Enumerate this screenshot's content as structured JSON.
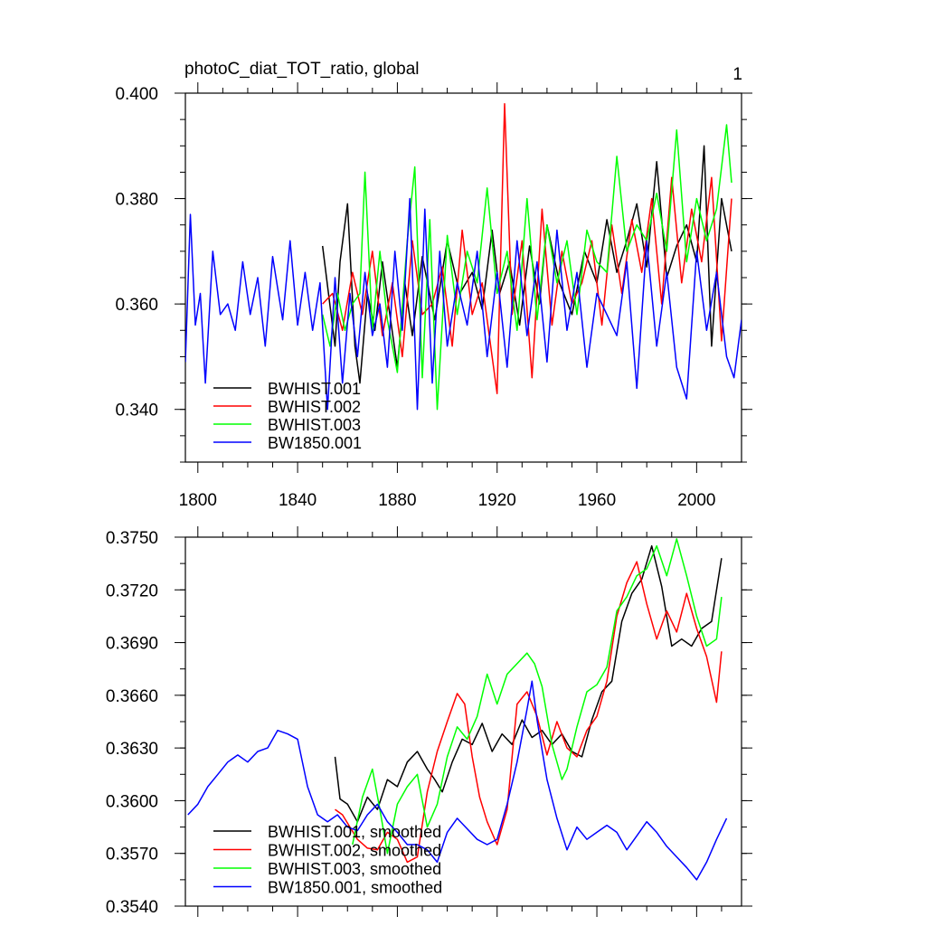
{
  "page": {
    "title": "photoC_diat_TOT_ratio, global",
    "panel_number": "1"
  },
  "chart_data": [
    {
      "type": "line",
      "title": "photoC_diat_TOT_ratio, global",
      "xlabel": "",
      "ylabel": "",
      "xlim": [
        1795,
        2018
      ],
      "ylim": [
        0.33,
        0.4
      ],
      "xticks": [
        {
          "v": 1800,
          "label": "1800"
        },
        {
          "v": 1840,
          "label": "1840"
        },
        {
          "v": 1880,
          "label": "1880"
        },
        {
          "v": 1920,
          "label": "1920"
        },
        {
          "v": 1960,
          "label": "1960"
        },
        {
          "v": 2000,
          "label": "2000"
        }
      ],
      "yticks": [
        {
          "v": 0.4,
          "label": "0.400"
        },
        {
          "v": 0.38,
          "label": "0.380"
        },
        {
          "v": 0.36,
          "label": "0.360"
        },
        {
          "v": 0.34,
          "label": "0.340"
        }
      ],
      "grid": false,
      "legend_position": "bottom-left",
      "series": [
        {
          "name": "BWHIST.001",
          "color": "#000000",
          "x": [
            1850,
            1855,
            1857,
            1860,
            1863,
            1865,
            1868,
            1871,
            1874,
            1877,
            1880,
            1883,
            1886,
            1890,
            1895,
            1900,
            1905,
            1910,
            1914,
            1918,
            1921,
            1925,
            1929,
            1933,
            1937,
            1940,
            1945,
            1950,
            1955,
            1960,
            1964,
            1968,
            1972,
            1976,
            1980,
            1984,
            1988,
            1992,
            1996,
            2000,
            2003,
            2006,
            2010,
            2014
          ],
          "y": [
            0.371,
            0.352,
            0.368,
            0.379,
            0.352,
            0.345,
            0.362,
            0.355,
            0.368,
            0.358,
            0.348,
            0.364,
            0.354,
            0.369,
            0.357,
            0.372,
            0.362,
            0.366,
            0.359,
            0.374,
            0.362,
            0.368,
            0.356,
            0.371,
            0.36,
            0.375,
            0.364,
            0.358,
            0.37,
            0.364,
            0.376,
            0.366,
            0.372,
            0.379,
            0.367,
            0.387,
            0.365,
            0.371,
            0.375,
            0.368,
            0.39,
            0.352,
            0.38,
            0.37
          ]
        },
        {
          "name": "BWHIST.002",
          "color": "#ff0000",
          "x": [
            1850,
            1854,
            1858,
            1862,
            1866,
            1870,
            1874,
            1878,
            1882,
            1886,
            1890,
            1894,
            1898,
            1902,
            1906,
            1910,
            1914,
            1918,
            1920,
            1923,
            1926,
            1930,
            1934,
            1938,
            1942,
            1946,
            1950,
            1954,
            1958,
            1962,
            1966,
            1970,
            1974,
            1978,
            1982,
            1986,
            1990,
            1994,
            1998,
            2002,
            2006,
            2010,
            2014
          ],
          "y": [
            0.36,
            0.362,
            0.355,
            0.366,
            0.358,
            0.37,
            0.354,
            0.364,
            0.35,
            0.372,
            0.358,
            0.36,
            0.367,
            0.352,
            0.374,
            0.358,
            0.364,
            0.35,
            0.343,
            0.398,
            0.358,
            0.372,
            0.346,
            0.378,
            0.356,
            0.37,
            0.36,
            0.364,
            0.372,
            0.356,
            0.375,
            0.362,
            0.376,
            0.366,
            0.38,
            0.36,
            0.384,
            0.364,
            0.378,
            0.368,
            0.384,
            0.353,
            0.38
          ]
        },
        {
          "name": "BWHIST.003",
          "color": "#00ff00",
          "x": [
            1850,
            1853,
            1856,
            1859,
            1862,
            1865,
            1867,
            1870,
            1873,
            1876,
            1880,
            1884,
            1887,
            1890,
            1893,
            1896,
            1900,
            1904,
            1908,
            1912,
            1916,
            1920,
            1924,
            1928,
            1932,
            1936,
            1940,
            1944,
            1948,
            1952,
            1956,
            1960,
            1964,
            1968,
            1972,
            1976,
            1980,
            1984,
            1988,
            1992,
            1996,
            2000,
            2004,
            2008,
            2012,
            2014
          ],
          "y": [
            0.358,
            0.352,
            0.362,
            0.355,
            0.36,
            0.362,
            0.385,
            0.355,
            0.37,
            0.357,
            0.347,
            0.372,
            0.386,
            0.346,
            0.376,
            0.34,
            0.373,
            0.358,
            0.37,
            0.364,
            0.382,
            0.362,
            0.37,
            0.355,
            0.38,
            0.357,
            0.375,
            0.364,
            0.372,
            0.358,
            0.374,
            0.368,
            0.366,
            0.388,
            0.37,
            0.375,
            0.372,
            0.381,
            0.37,
            0.393,
            0.368,
            0.38,
            0.372,
            0.378,
            0.394,
            0.383
          ]
        },
        {
          "name": "BW1850.001",
          "color": "#0000ff",
          "x": [
            1795,
            1797,
            1799,
            1801,
            1803,
            1806,
            1809,
            1812,
            1815,
            1818,
            1821,
            1824,
            1827,
            1830,
            1834,
            1837,
            1840,
            1843,
            1846,
            1849,
            1852,
            1855,
            1858,
            1861,
            1864,
            1867,
            1870,
            1873,
            1876,
            1879,
            1882,
            1885,
            1888,
            1891,
            1894,
            1897,
            1900,
            1904,
            1908,
            1912,
            1916,
            1920,
            1924,
            1928,
            1932,
            1936,
            1940,
            1944,
            1948,
            1952,
            1956,
            1960,
            1964,
            1968,
            1972,
            1976,
            1980,
            1984,
            1988,
            1992,
            1996,
            2000,
            2004,
            2008,
            2012,
            2015,
            2018
          ],
          "y": [
            0.349,
            0.377,
            0.356,
            0.362,
            0.345,
            0.37,
            0.358,
            0.36,
            0.355,
            0.368,
            0.358,
            0.365,
            0.352,
            0.369,
            0.357,
            0.372,
            0.356,
            0.366,
            0.355,
            0.364,
            0.34,
            0.365,
            0.345,
            0.362,
            0.35,
            0.366,
            0.354,
            0.36,
            0.348,
            0.37,
            0.355,
            0.38,
            0.34,
            0.378,
            0.345,
            0.37,
            0.352,
            0.364,
            0.356,
            0.37,
            0.35,
            0.366,
            0.348,
            0.372,
            0.354,
            0.368,
            0.349,
            0.374,
            0.355,
            0.366,
            0.348,
            0.362,
            0.358,
            0.354,
            0.368,
            0.344,
            0.372,
            0.352,
            0.366,
            0.348,
            0.342,
            0.37,
            0.355,
            0.366,
            0.35,
            0.346,
            0.357
          ]
        }
      ]
    },
    {
      "type": "line",
      "title": "",
      "xlabel": "",
      "ylabel": "",
      "xlim": [
        1795,
        2018
      ],
      "ylim": [
        0.354,
        0.375
      ],
      "xticks": [
        {
          "v": 1800,
          "label": ""
        },
        {
          "v": 1840,
          "label": ""
        },
        {
          "v": 1880,
          "label": ""
        },
        {
          "v": 1920,
          "label": ""
        },
        {
          "v": 1960,
          "label": ""
        },
        {
          "v": 2000,
          "label": ""
        }
      ],
      "yticks": [
        {
          "v": 0.375,
          "label": "0.3750"
        },
        {
          "v": 0.372,
          "label": "0.3720"
        },
        {
          "v": 0.369,
          "label": "0.3690"
        },
        {
          "v": 0.366,
          "label": "0.3660"
        },
        {
          "v": 0.363,
          "label": "0.3630"
        },
        {
          "v": 0.36,
          "label": "0.3600"
        },
        {
          "v": 0.357,
          "label": "0.3570"
        },
        {
          "v": 0.354,
          "label": "0.3540"
        }
      ],
      "grid": false,
      "legend_position": "bottom-left",
      "series": [
        {
          "name": "BWHIST.001, smoothed",
          "color": "#000000",
          "x": [
            1855,
            1857,
            1860,
            1864,
            1868,
            1872,
            1876,
            1880,
            1884,
            1888,
            1892,
            1895,
            1898,
            1902,
            1906,
            1910,
            1914,
            1918,
            1922,
            1926,
            1930,
            1934,
            1938,
            1942,
            1946,
            1950,
            1954,
            1958,
            1962,
            1966,
            1970,
            1974,
            1978,
            1982,
            1986,
            1990,
            1994,
            1998,
            2002,
            2006,
            2010
          ],
          "y": [
            0.3625,
            0.3601,
            0.3598,
            0.3588,
            0.3602,
            0.3595,
            0.3612,
            0.3608,
            0.3622,
            0.3628,
            0.3618,
            0.3612,
            0.3605,
            0.3622,
            0.3635,
            0.3632,
            0.3644,
            0.3628,
            0.3638,
            0.3632,
            0.3646,
            0.3636,
            0.364,
            0.3632,
            0.3638,
            0.3628,
            0.3625,
            0.3646,
            0.3662,
            0.3668,
            0.3702,
            0.3718,
            0.3726,
            0.3745,
            0.3722,
            0.3688,
            0.3692,
            0.3688,
            0.3698,
            0.3702,
            0.3738
          ]
        },
        {
          "name": "BWHIST.002, smoothed",
          "color": "#ff0000",
          "x": [
            1855,
            1858,
            1861,
            1864,
            1868,
            1872,
            1876,
            1880,
            1884,
            1888,
            1892,
            1896,
            1900,
            1904,
            1907,
            1910,
            1913,
            1916,
            1920,
            1924,
            1928,
            1932,
            1936,
            1940,
            1944,
            1948,
            1952,
            1956,
            1960,
            1964,
            1968,
            1972,
            1976,
            1980,
            1984,
            1988,
            1992,
            1996,
            2000,
            2004,
            2008,
            2010
          ],
          "y": [
            0.3595,
            0.3592,
            0.3585,
            0.3578,
            0.3573,
            0.3572,
            0.3582,
            0.3578,
            0.3565,
            0.3568,
            0.3605,
            0.3628,
            0.3645,
            0.3661,
            0.3655,
            0.3625,
            0.3602,
            0.3588,
            0.3575,
            0.3595,
            0.3655,
            0.3662,
            0.3648,
            0.3626,
            0.3645,
            0.363,
            0.3625,
            0.364,
            0.3648,
            0.3668,
            0.3705,
            0.3724,
            0.3736,
            0.3712,
            0.3692,
            0.3708,
            0.3696,
            0.3718,
            0.3698,
            0.3682,
            0.3656,
            0.3685
          ]
        },
        {
          "name": "BWHIST.003, smoothed",
          "color": "#00ff00",
          "x": [
            1862,
            1866,
            1870,
            1873,
            1876,
            1880,
            1884,
            1888,
            1892,
            1896,
            1900,
            1904,
            1908,
            1912,
            1916,
            1920,
            1924,
            1928,
            1932,
            1935,
            1938,
            1942,
            1946,
            1948,
            1952,
            1956,
            1960,
            1964,
            1968,
            1972,
            1976,
            1980,
            1984,
            1988,
            1992,
            1996,
            2000,
            2004,
            2008,
            2010
          ],
          "y": [
            0.3575,
            0.3602,
            0.3618,
            0.3595,
            0.357,
            0.3598,
            0.3608,
            0.3615,
            0.3585,
            0.3598,
            0.3625,
            0.3642,
            0.3635,
            0.3648,
            0.3672,
            0.3655,
            0.3672,
            0.3678,
            0.3684,
            0.3678,
            0.3665,
            0.3632,
            0.3612,
            0.3618,
            0.3642,
            0.3662,
            0.3666,
            0.3676,
            0.3708,
            0.3716,
            0.3728,
            0.3732,
            0.3745,
            0.3728,
            0.3749,
            0.3728,
            0.3705,
            0.3688,
            0.3692,
            0.3716
          ]
        },
        {
          "name": "BW1850.001, smoothed",
          "color": "#0000ff",
          "x": [
            1796,
            1800,
            1804,
            1808,
            1812,
            1816,
            1820,
            1824,
            1828,
            1832,
            1836,
            1840,
            1844,
            1848,
            1852,
            1856,
            1860,
            1864,
            1868,
            1872,
            1876,
            1880,
            1884,
            1888,
            1892,
            1896,
            1900,
            1904,
            1908,
            1912,
            1916,
            1920,
            1924,
            1928,
            1932,
            1934,
            1936,
            1940,
            1944,
            1948,
            1952,
            1956,
            1960,
            1964,
            1968,
            1972,
            1976,
            1980,
            1984,
            1988,
            1992,
            1996,
            2000,
            2004,
            2008,
            2012
          ],
          "y": [
            0.3592,
            0.3598,
            0.3608,
            0.3615,
            0.3622,
            0.3626,
            0.3622,
            0.3628,
            0.363,
            0.364,
            0.3638,
            0.3635,
            0.3608,
            0.3592,
            0.3588,
            0.3592,
            0.3585,
            0.3583,
            0.3592,
            0.3598,
            0.3588,
            0.3582,
            0.3575,
            0.3575,
            0.3572,
            0.3565,
            0.3582,
            0.359,
            0.3584,
            0.3578,
            0.3575,
            0.3578,
            0.3598,
            0.3622,
            0.3652,
            0.3668,
            0.3646,
            0.3612,
            0.359,
            0.3572,
            0.3585,
            0.3578,
            0.3582,
            0.3586,
            0.3582,
            0.3572,
            0.358,
            0.3588,
            0.3582,
            0.3574,
            0.3568,
            0.3562,
            0.3555,
            0.3565,
            0.3578,
            0.359
          ]
        }
      ]
    }
  ]
}
